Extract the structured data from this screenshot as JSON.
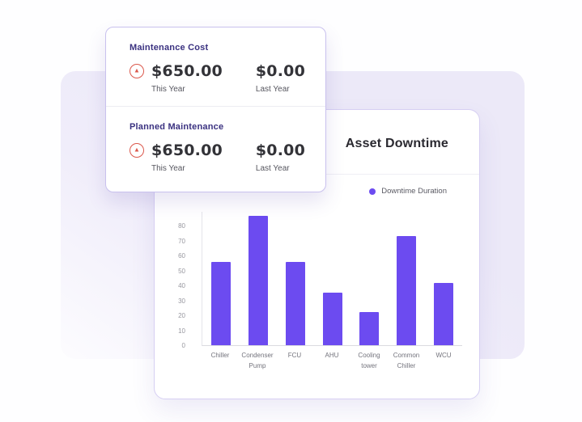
{
  "stats_card": {
    "sections": [
      {
        "title": "Maintenance Cost",
        "this_year_value": "$650.00",
        "this_year_label": "This Year",
        "last_year_value": "$0.00",
        "last_year_label": "Last Year",
        "trend": "up",
        "trend_color": "#DB584C"
      },
      {
        "title": "Planned Maintenance",
        "this_year_value": "$650.00",
        "this_year_label": "This Year",
        "last_year_value": "$0.00",
        "last_year_label": "Last Year",
        "trend": "up",
        "trend_color": "#DB584C"
      }
    ]
  },
  "chart_card": {
    "title": "Asset Downtime",
    "legend_label": "Downtime Duration"
  },
  "chart_data": {
    "type": "bar",
    "title": "Asset Downtime",
    "categories": [
      "Chiller",
      "Condenser Pump",
      "FCU",
      "AHU",
      "Cooling tower",
      "Common Chiller",
      "WCU"
    ],
    "values": [
      56,
      87,
      56,
      35,
      22,
      73,
      42
    ],
    "series_name": "Downtime Duration",
    "xlabel": "",
    "ylabel": "",
    "ylim": [
      0,
      90
    ],
    "yticks": [
      0,
      10,
      20,
      30,
      40,
      50,
      60,
      70,
      80
    ],
    "grid": false,
    "legend_position": "top-right",
    "bar_color": "#6C4BF0"
  },
  "icons": {
    "trend_up": "▲",
    "legend_dot": "circle"
  },
  "colors": {
    "accent_purple": "#6C4BF0",
    "heading_indigo": "#3A3180",
    "alert_red": "#DB584C",
    "panel_lavender": "#ECE9F8"
  }
}
